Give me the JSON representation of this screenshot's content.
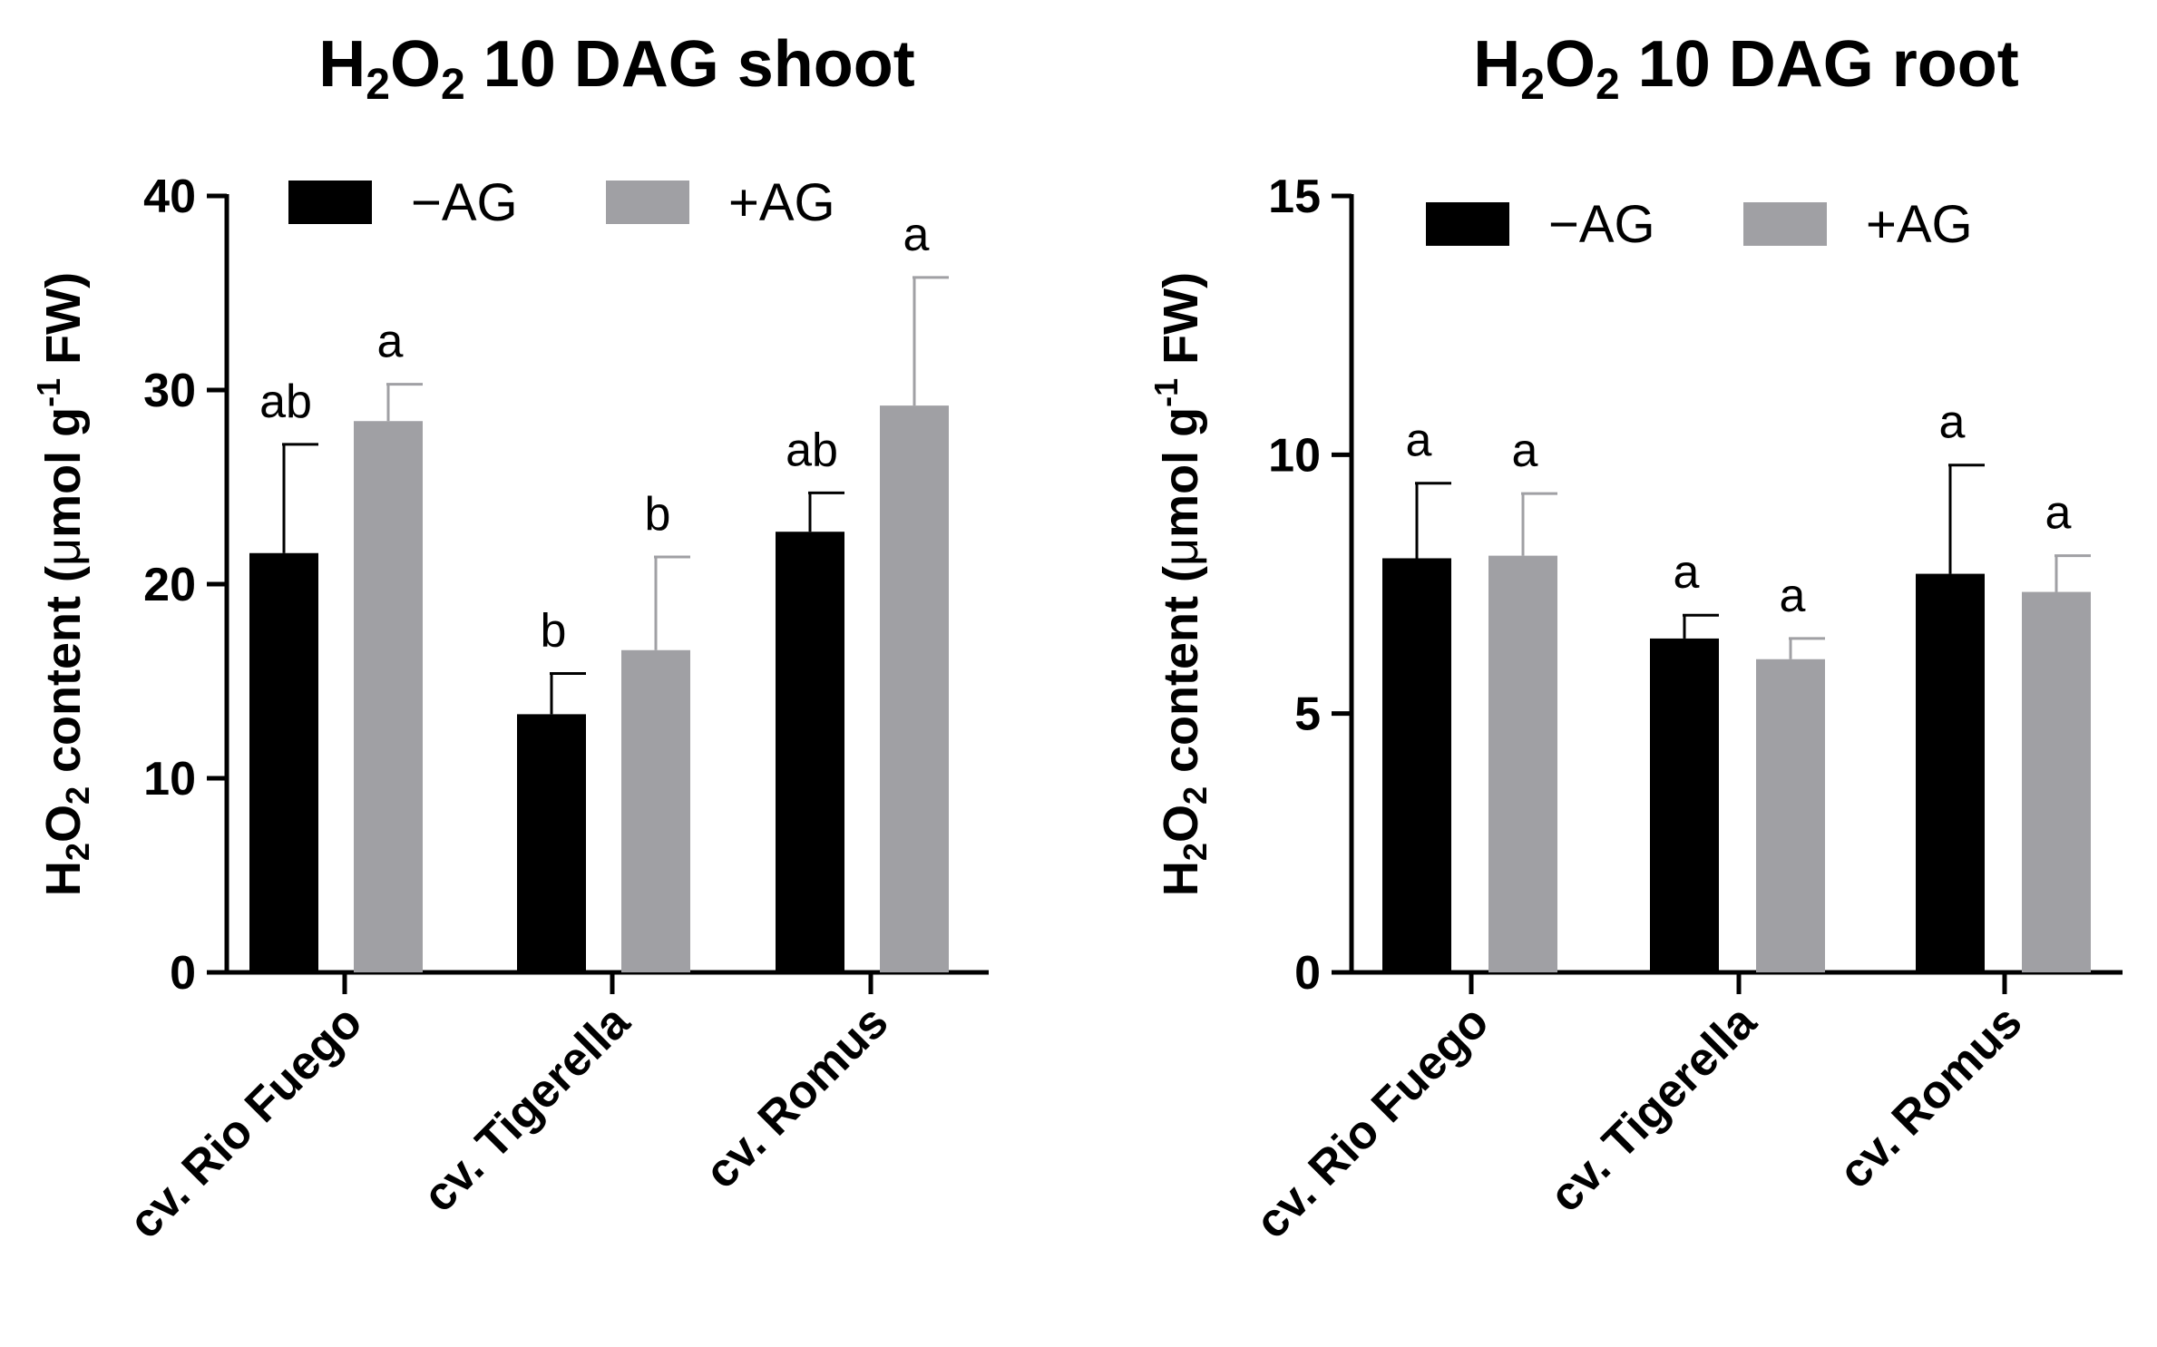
{
  "chart_data": [
    {
      "type": "bar",
      "title": {
        "pre": "H",
        "sub1": "2",
        "mid": "O",
        "sub2": "2",
        "post": " 10 DAG shoot"
      },
      "ylabel": {
        "p1": "H",
        "s1": "2",
        "p2": "O",
        "s2": "2",
        "p3": " content (",
        "mu": "μ",
        "p4": "mol g",
        "sup": "-1",
        "p5": " FW)"
      },
      "xlabel": "",
      "ylim": [
        0,
        40
      ],
      "yticks": [
        0,
        10,
        20,
        30,
        40
      ],
      "categories": [
        "cv. Rio Fuego",
        "cv. Tigerella",
        "cv. Romus"
      ],
      "legend_position": "top",
      "series": [
        {
          "name": "−AG",
          "color": "#000000",
          "values": [
            21.6,
            13.3,
            22.7
          ],
          "errors": [
            5.6,
            2.1,
            2.0
          ],
          "labels": [
            "ab",
            "b",
            "ab"
          ]
        },
        {
          "name": "+AG",
          "color": "#a0a0a4",
          "values": [
            28.4,
            16.6,
            29.2
          ],
          "errors": [
            1.9,
            4.8,
            6.6
          ],
          "labels": [
            "a",
            "b",
            "a"
          ]
        }
      ]
    },
    {
      "type": "bar",
      "title": {
        "pre": "H",
        "sub1": "2",
        "mid": "O",
        "sub2": "2",
        "post": " 10 DAG root"
      },
      "ylabel": {
        "p1": "H",
        "s1": "2",
        "p2": "O",
        "s2": "2",
        "p3": " content (",
        "mu": "μ",
        "p4": "mol g",
        "sup": "-1",
        "p5": " FW)"
      },
      "xlabel": "",
      "ylim": [
        0,
        15
      ],
      "yticks": [
        0,
        5,
        10,
        15
      ],
      "categories": [
        "cv. Rio Fuego",
        "cv. Tigerella",
        "cv. Romus"
      ],
      "legend_position": "top",
      "series": [
        {
          "name": "−AG",
          "color": "#000000",
          "values": [
            8.0,
            6.45,
            7.7
          ],
          "errors": [
            1.45,
            0.45,
            2.1
          ],
          "labels": [
            "a",
            "a",
            "a"
          ]
        },
        {
          "name": "+AG",
          "color": "#a0a0a4",
          "values": [
            8.05,
            6.05,
            7.35
          ],
          "errors": [
            1.2,
            0.4,
            0.7
          ],
          "labels": [
            "a",
            "a",
            "a"
          ]
        }
      ]
    }
  ]
}
